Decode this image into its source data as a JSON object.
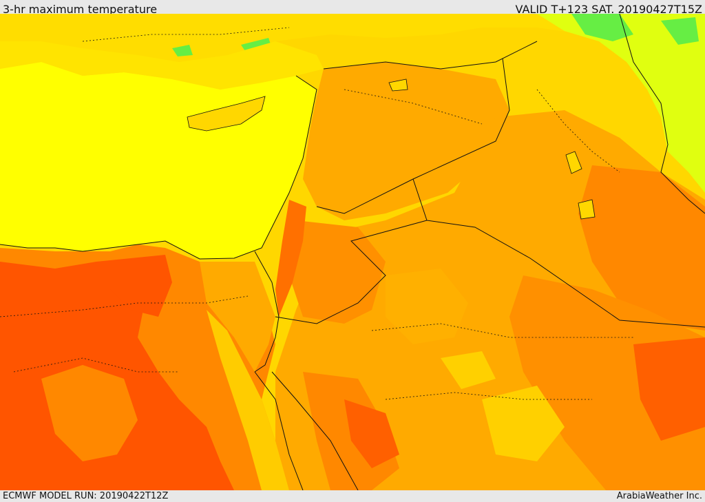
{
  "header": {
    "title": "3-hr maximum temperature",
    "valid": "VALID T+123 SAT. 20190427T15Z"
  },
  "footer": {
    "model_run": "ECMWF MODEL RUN: 20190422T12Z",
    "credit": "ArabiaWeather Inc."
  },
  "colors": {
    "sea": "#ffff00",
    "warm_light": "#ffd700",
    "warm": "#ffaa00",
    "hot": "#ff8800",
    "very_hot": "#ff5500",
    "cool": "#c8ff00",
    "cold": "#44ee44",
    "border": "#111111"
  }
}
